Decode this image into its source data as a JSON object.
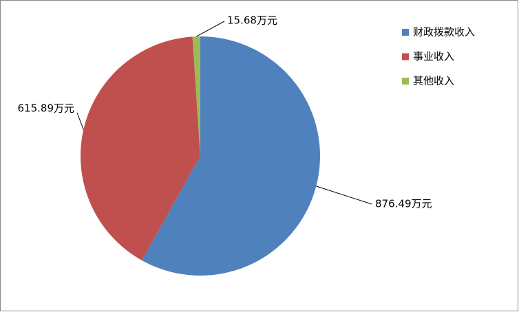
{
  "chart_data": {
    "type": "pie",
    "categories": [
      "财政拨款收入",
      "事业收入",
      "其他收入"
    ],
    "values": [
      876.49,
      615.89,
      15.68
    ],
    "value_labels": [
      "876.49万元",
      "615.89万元",
      "15.68万元"
    ],
    "colors": [
      "#4f81bd",
      "#c0504d",
      "#9bbb59"
    ],
    "legend": "top-right"
  }
}
